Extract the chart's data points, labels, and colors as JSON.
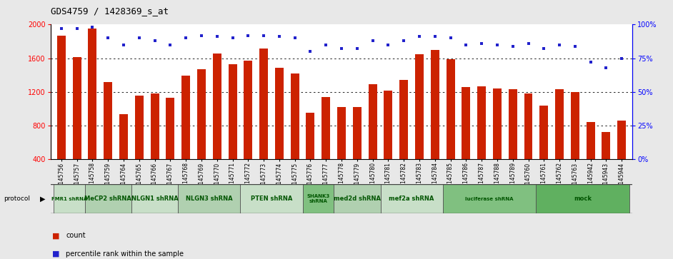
{
  "title": "GDS4759 / 1428369_s_at",
  "samples": [
    "GSM1145756",
    "GSM1145757",
    "GSM1145758",
    "GSM1145759",
    "GSM1145764",
    "GSM1145765",
    "GSM1145766",
    "GSM1145767",
    "GSM1145768",
    "GSM1145769",
    "GSM1145770",
    "GSM1145771",
    "GSM1145772",
    "GSM1145773",
    "GSM1145774",
    "GSM1145775",
    "GSM1145776",
    "GSM1145777",
    "GSM1145778",
    "GSM1145779",
    "GSM1145780",
    "GSM1145781",
    "GSM1145782",
    "GSM1145783",
    "GSM1145784",
    "GSM1145785",
    "GSM1145786",
    "GSM1145787",
    "GSM1145788",
    "GSM1145789",
    "GSM1145760",
    "GSM1145761",
    "GSM1145762",
    "GSM1145763",
    "GSM1145942",
    "GSM1145943",
    "GSM1145944"
  ],
  "bar_values": [
    1870,
    1610,
    1950,
    1320,
    940,
    1160,
    1180,
    1130,
    1390,
    1470,
    1660,
    1530,
    1570,
    1720,
    1490,
    1420,
    950,
    1140,
    1020,
    1020,
    1290,
    1220,
    1340,
    1650,
    1700,
    1590,
    1260,
    1270,
    1240,
    1230,
    1180,
    1040,
    1230,
    1200,
    840,
    720,
    860
  ],
  "percentile_values": [
    97,
    97,
    98,
    90,
    85,
    90,
    88,
    85,
    90,
    92,
    91,
    90,
    92,
    92,
    91,
    90,
    80,
    85,
    82,
    82,
    88,
    85,
    88,
    91,
    91,
    90,
    85,
    86,
    85,
    84,
    86,
    82,
    85,
    84,
    72,
    68,
    75
  ],
  "bar_color": "#cc2200",
  "percentile_color": "#2222cc",
  "protocols": [
    {
      "label": "FMR1 shRNA",
      "start": 0,
      "end": 2,
      "color": "#c8dfc8"
    },
    {
      "label": "MeCP2 shRNA",
      "start": 2,
      "end": 5,
      "color": "#b0d0b0"
    },
    {
      "label": "NLGN1 shRNA",
      "start": 5,
      "end": 8,
      "color": "#c8dfc8"
    },
    {
      "label": "NLGN3 shRNA",
      "start": 8,
      "end": 12,
      "color": "#b0d0b0"
    },
    {
      "label": "PTEN shRNA",
      "start": 12,
      "end": 16,
      "color": "#c8dfc8"
    },
    {
      "label": "SHANK3\nshRNA",
      "start": 16,
      "end": 18,
      "color": "#80c080"
    },
    {
      "label": "med2d shRNA",
      "start": 18,
      "end": 21,
      "color": "#b0d0b0"
    },
    {
      "label": "mef2a shRNA",
      "start": 21,
      "end": 25,
      "color": "#c8dfc8"
    },
    {
      "label": "luciferase shRNA",
      "start": 25,
      "end": 31,
      "color": "#80c080"
    },
    {
      "label": "mock",
      "start": 31,
      "end": 37,
      "color": "#60b060"
    }
  ],
  "ylim": [
    400,
    2000
  ],
  "yticks": [
    400,
    800,
    1200,
    1600,
    2000
  ],
  "grid_lines": [
    800,
    1200,
    1600
  ],
  "right_yticks": [
    0,
    25,
    50,
    75,
    100
  ],
  "background_color": "#e8e8e8",
  "plot_bg": "#ffffff",
  "xticklabel_fontsize": 5.5,
  "yticklabel_fontsize": 7,
  "title_fontsize": 9
}
